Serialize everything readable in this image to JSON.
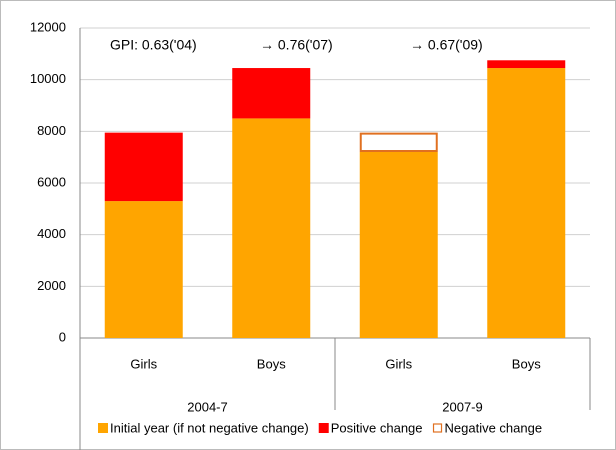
{
  "chart_data": {
    "type": "bar",
    "stacked": true,
    "annotations": [
      "GPI:  0.63('04)",
      "→  0.76('07)",
      "→  0.67('09)"
    ],
    "categories": [
      "Girls",
      "Boys",
      "Girls",
      "Boys"
    ],
    "groups": [
      {
        "label": "2004-7",
        "span": 2
      },
      {
        "label": "2007-9",
        "span": 2
      }
    ],
    "series": [
      {
        "name": "Initial year (if not negative change)",
        "color": "#ffa500",
        "style": "fill",
        "values": [
          5300,
          8500,
          7200,
          10450
        ]
      },
      {
        "name": "Positive change",
        "color": "#ff0000",
        "style": "fill",
        "values": [
          2650,
          1950,
          null,
          300
        ]
      },
      {
        "name": "Negative change",
        "color": "#e07020",
        "style": "outline",
        "values": [
          null,
          null,
          750,
          null
        ]
      }
    ],
    "ylim": [
      0,
      12000
    ],
    "yticks": [
      0,
      2000,
      4000,
      6000,
      8000,
      10000,
      12000
    ],
    "grid": true,
    "legend": "bottom"
  }
}
